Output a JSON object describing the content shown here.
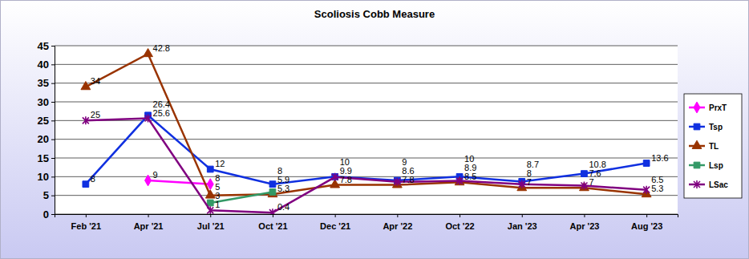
{
  "chart_data": {
    "type": "line",
    "title": "Scoliosis Cobb Measure",
    "categories": [
      "Feb '21",
      "Apr '21",
      "Jul '21",
      "Oct '21",
      "Dec '21",
      "Apr '22",
      "Oct '22",
      "Jan '23",
      "Apr '23",
      "Aug '23"
    ],
    "series": [
      {
        "name": "PrxT",
        "color": "#ff00ff",
        "marker": "diamond",
        "values": [
          null,
          9,
          8,
          null,
          null,
          null,
          null,
          null,
          null,
          null
        ]
      },
      {
        "name": "Tsp",
        "color": "#1030e0",
        "marker": "square",
        "values": [
          8,
          26.4,
          12,
          8,
          10,
          9,
          10,
          8.7,
          10.8,
          13.6
        ]
      },
      {
        "name": "TL",
        "color": "#993300",
        "marker": "triangle",
        "values": [
          34,
          42.8,
          5,
          5.3,
          7.8,
          7.8,
          8.5,
          7,
          7,
          5.3
        ]
      },
      {
        "name": "Lsp",
        "color": "#339966",
        "marker": "square",
        "values": [
          null,
          null,
          3,
          5.9,
          null,
          null,
          null,
          null,
          null,
          null
        ]
      },
      {
        "name": "LSac",
        "color": "#800080",
        "marker": "star",
        "values": [
          25,
          25.6,
          1,
          0.4,
          9.9,
          8.6,
          8.9,
          8,
          7.6,
          6.5
        ]
      }
    ],
    "ylim": [
      0,
      45
    ],
    "yticks": [
      0,
      5,
      10,
      15,
      20,
      25,
      30,
      35,
      40,
      45
    ],
    "grid": true,
    "legend": "right",
    "data_labels": true
  }
}
